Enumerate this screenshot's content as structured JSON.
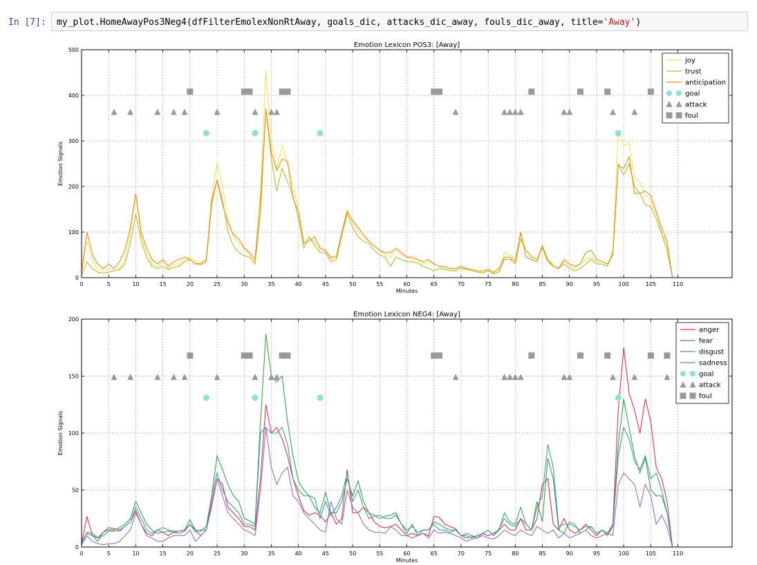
{
  "cell": {
    "prompt": "In [7]:",
    "code_before": "my_plot.HomeAwayPos3Neg4(dfFilterEmolexNonRtAway, goals_dic, attacks_dic_away, fouls_dic_away, title=",
    "code_string": "'Away'",
    "code_after": ")"
  },
  "chart_data": [
    {
      "type": "line",
      "title": "Emotion Lexicon POS3: [Away]",
      "xlabel": "Minutes",
      "ylabel": "Emotion Signals",
      "xlim": [
        0,
        120
      ],
      "ylim": [
        0,
        500
      ],
      "xticks": [
        0,
        5,
        10,
        15,
        20,
        25,
        30,
        35,
        40,
        45,
        50,
        55,
        60,
        65,
        70,
        75,
        80,
        85,
        90,
        95,
        100,
        105,
        110
      ],
      "yticks": [
        0,
        100,
        200,
        300,
        400,
        500
      ],
      "grid": true,
      "legend_position": "top-right",
      "legend": [
        "joy",
        "trust",
        "anticipation",
        "goal",
        "attack",
        "foul"
      ],
      "x": [
        0,
        1,
        2,
        3,
        4,
        5,
        6,
        7,
        8,
        9,
        10,
        11,
        12,
        13,
        14,
        15,
        16,
        17,
        18,
        19,
        20,
        21,
        22,
        23,
        24,
        25,
        26,
        27,
        28,
        29,
        30,
        31,
        32,
        33,
        34,
        35,
        36,
        37,
        38,
        39,
        40,
        41,
        42,
        43,
        44,
        45,
        46,
        47,
        48,
        49,
        50,
        51,
        52,
        53,
        54,
        55,
        56,
        57,
        58,
        59,
        60,
        61,
        62,
        63,
        64,
        65,
        66,
        67,
        68,
        69,
        70,
        71,
        72,
        73,
        74,
        75,
        76,
        77,
        78,
        79,
        80,
        81,
        82,
        83,
        84,
        85,
        86,
        87,
        88,
        89,
        90,
        91,
        92,
        93,
        94,
        95,
        96,
        97,
        98,
        99,
        100,
        101,
        102,
        103,
        104,
        105,
        106,
        107,
        108,
        109,
        110
      ],
      "series": [
        {
          "name": "joy",
          "color": "#f2e35e",
          "values": [
            10,
            80,
            35,
            20,
            15,
            20,
            15,
            20,
            40,
            100,
            180,
            90,
            55,
            30,
            25,
            35,
            20,
            28,
            30,
            40,
            45,
            35,
            30,
            40,
            180,
            250,
            200,
            130,
            90,
            75,
            65,
            50,
            35,
            190,
            455,
            300,
            240,
            290,
            250,
            200,
            150,
            80,
            85,
            80,
            60,
            60,
            40,
            50,
            100,
            150,
            120,
            100,
            90,
            80,
            70,
            60,
            50,
            45,
            60,
            50,
            45,
            40,
            40,
            30,
            35,
            30,
            25,
            20,
            18,
            20,
            22,
            20,
            18,
            15,
            12,
            15,
            10,
            15,
            55,
            50,
            40,
            95,
            60,
            50,
            40,
            70,
            40,
            30,
            20,
            35,
            25,
            20,
            30,
            40,
            45,
            35,
            30,
            25,
            60,
            320,
            290,
            295,
            220,
            210,
            180,
            170,
            140,
            100,
            70,
            0,
            0
          ]
        },
        {
          "name": "trust",
          "color": "#b5bd31",
          "values": [
            5,
            35,
            20,
            12,
            10,
            12,
            15,
            18,
            30,
            75,
            140,
            80,
            45,
            25,
            20,
            25,
            18,
            22,
            25,
            35,
            40,
            30,
            28,
            35,
            160,
            215,
            170,
            100,
            70,
            55,
            48,
            45,
            30,
            140,
            370,
            260,
            190,
            240,
            210,
            180,
            130,
            65,
            90,
            70,
            55,
            55,
            35,
            40,
            90,
            140,
            110,
            90,
            80,
            75,
            60,
            50,
            45,
            25,
            45,
            40,
            35,
            35,
            32,
            25,
            20,
            15,
            20,
            18,
            15,
            15,
            20,
            18,
            15,
            12,
            10,
            15,
            8,
            12,
            40,
            40,
            30,
            85,
            60,
            45,
            40,
            65,
            35,
            25,
            20,
            30,
            20,
            15,
            20,
            30,
            40,
            30,
            30,
            25,
            55,
            250,
            225,
            250,
            200,
            185,
            160,
            155,
            130,
            95,
            60,
            0,
            0
          ]
        },
        {
          "name": "anticipation",
          "color": "#f08c1e",
          "values": [
            15,
            100,
            50,
            30,
            20,
            30,
            20,
            35,
            60,
            110,
            185,
            100,
            65,
            40,
            30,
            40,
            25,
            35,
            40,
            45,
            40,
            30,
            32,
            40,
            170,
            215,
            160,
            120,
            95,
            85,
            65,
            55,
            40,
            170,
            370,
            275,
            235,
            260,
            255,
            175,
            145,
            75,
            80,
            90,
            65,
            60,
            45,
            45,
            100,
            145,
            125,
            110,
            95,
            80,
            70,
            60,
            55,
            55,
            65,
            55,
            45,
            45,
            40,
            35,
            40,
            30,
            25,
            25,
            20,
            20,
            25,
            20,
            18,
            15,
            15,
            18,
            12,
            20,
            45,
            45,
            35,
            100,
            45,
            40,
            35,
            70,
            40,
            25,
            20,
            40,
            30,
            25,
            30,
            55,
            60,
            40,
            35,
            30,
            50,
            245,
            240,
            265,
            185,
            185,
            190,
            180,
            145,
            110,
            80,
            0,
            0
          ]
        }
      ],
      "markers": {
        "goal": {
          "color": "#8fe0d8",
          "y": 317,
          "x": [
            23,
            32,
            44,
            99
          ]
        },
        "attack": {
          "color": "#999999",
          "y": 363,
          "x": [
            6,
            9,
            14,
            17,
            19,
            25,
            32,
            35,
            36,
            69,
            78,
            79,
            80,
            81,
            89,
            90,
            98,
            102
          ]
        },
        "foul": {
          "color": "#999999",
          "y": 408,
          "x": [
            20,
            30,
            31,
            37,
            38,
            65,
            66,
            83,
            92,
            97,
            105
          ]
        }
      }
    },
    {
      "type": "line",
      "title": "Emotion Lexicon NEG4: [Away]",
      "xlabel": "Minutes",
      "ylabel": "Emotion Signals",
      "xlim": [
        0,
        120
      ],
      "ylim": [
        0,
        200
      ],
      "xticks": [
        0,
        5,
        10,
        15,
        20,
        25,
        30,
        35,
        40,
        45,
        50,
        55,
        60,
        65,
        70,
        75,
        80,
        85,
        90,
        95,
        100,
        105,
        110
      ],
      "yticks": [
        0,
        50,
        100,
        150,
        200
      ],
      "grid": true,
      "legend_position": "top-right",
      "legend": [
        "anger",
        "fear",
        "disgust",
        "sadness",
        "goal",
        "attack",
        "foul"
      ],
      "x": [
        0,
        1,
        2,
        3,
        4,
        5,
        6,
        7,
        8,
        9,
        10,
        11,
        12,
        13,
        14,
        15,
        16,
        17,
        18,
        19,
        20,
        21,
        22,
        23,
        24,
        25,
        26,
        27,
        28,
        29,
        30,
        31,
        32,
        33,
        34,
        35,
        36,
        37,
        38,
        39,
        40,
        41,
        42,
        43,
        44,
        45,
        46,
        47,
        48,
        49,
        50,
        51,
        52,
        53,
        54,
        55,
        56,
        57,
        58,
        59,
        60,
        61,
        62,
        63,
        64,
        65,
        66,
        67,
        68,
        69,
        70,
        71,
        72,
        73,
        74,
        75,
        76,
        77,
        78,
        79,
        80,
        81,
        82,
        83,
        84,
        85,
        86,
        87,
        88,
        89,
        90,
        91,
        92,
        93,
        94,
        95,
        96,
        97,
        98,
        99,
        100,
        101,
        102,
        103,
        104,
        105,
        106,
        107,
        108,
        109,
        110
      ],
      "series": [
        {
          "name": "anger",
          "color": "#e0304a",
          "values": [
            3,
            27,
            10,
            8,
            13,
            17,
            16,
            15,
            18,
            22,
            32,
            20,
            12,
            10,
            15,
            13,
            10,
            13,
            12,
            14,
            20,
            15,
            10,
            15,
            40,
            60,
            55,
            35,
            30,
            25,
            18,
            18,
            15,
            60,
            125,
            100,
            105,
            95,
            80,
            60,
            45,
            32,
            28,
            30,
            28,
            22,
            30,
            20,
            25,
            68,
            30,
            30,
            35,
            30,
            22,
            18,
            17,
            18,
            20,
            15,
            10,
            12,
            10,
            12,
            10,
            27,
            26,
            20,
            18,
            16,
            10,
            8,
            9,
            10,
            12,
            10,
            12,
            15,
            20,
            15,
            15,
            25,
            15,
            15,
            25,
            55,
            60,
            20,
            15,
            25,
            15,
            12,
            15,
            20,
            15,
            10,
            15,
            12,
            20,
            120,
            175,
            135,
            120,
            100,
            130,
            110,
            70,
            60,
            40,
            0,
            0
          ]
        },
        {
          "name": "fear",
          "color": "#3aa04a",
          "values": [
            5,
            12,
            10,
            5,
            13,
            15,
            15,
            17,
            20,
            25,
            40,
            30,
            20,
            15,
            12,
            13,
            14,
            13,
            14,
            15,
            24,
            15,
            14,
            18,
            45,
            80,
            68,
            55,
            45,
            40,
            25,
            23,
            20,
            110,
            187,
            150,
            145,
            150,
            110,
            80,
            58,
            50,
            45,
            35,
            30,
            48,
            30,
            30,
            40,
            60,
            45,
            58,
            40,
            30,
            28,
            25,
            27,
            28,
            30,
            20,
            12,
            20,
            10,
            15,
            15,
            22,
            20,
            17,
            15,
            15,
            10,
            12,
            10,
            8,
            12,
            15,
            10,
            16,
            25,
            20,
            18,
            25,
            20,
            15,
            40,
            22,
            78,
            60,
            15,
            12,
            22,
            20,
            12,
            15,
            18,
            12,
            15,
            10,
            18,
            90,
            130,
            105,
            80,
            65,
            78,
            50,
            45,
            45,
            30,
            0,
            0
          ]
        },
        {
          "name": "disgust",
          "color": "#8e6fc6",
          "values": [
            2,
            10,
            5,
            3,
            2,
            3,
            3,
            5,
            10,
            15,
            30,
            20,
            10,
            8,
            5,
            5,
            8,
            10,
            10,
            10,
            15,
            5,
            10,
            15,
            35,
            60,
            45,
            30,
            25,
            20,
            15,
            13,
            10,
            50,
            105,
            70,
            55,
            65,
            70,
            45,
            40,
            30,
            25,
            20,
            15,
            13,
            40,
            25,
            20,
            50,
            35,
            30,
            20,
            15,
            13,
            13,
            12,
            18,
            15,
            10,
            10,
            8,
            10,
            12,
            8,
            15,
            12,
            13,
            12,
            10,
            8,
            5,
            7,
            8,
            10,
            8,
            7,
            10,
            15,
            12,
            10,
            15,
            12,
            10,
            18,
            15,
            12,
            15,
            8,
            12,
            8,
            10,
            12,
            15,
            10,
            8,
            10,
            12,
            10,
            55,
            65,
            60,
            55,
            35,
            55,
            45,
            20,
            28,
            18,
            0,
            0
          ]
        },
        {
          "name": "sadness",
          "color": "#3c9aa8",
          "values": [
            3,
            13,
            12,
            8,
            10,
            14,
            14,
            14,
            18,
            22,
            35,
            25,
            15,
            12,
            15,
            17,
            15,
            14,
            14,
            15,
            20,
            13,
            15,
            15,
            45,
            65,
            50,
            40,
            35,
            30,
            20,
            20,
            18,
            100,
            105,
            100,
            100,
            105,
            90,
            60,
            50,
            45,
            45,
            43,
            25,
            40,
            28,
            35,
            45,
            65,
            40,
            50,
            35,
            25,
            27,
            28,
            25,
            25,
            28,
            20,
            15,
            18,
            13,
            15,
            15,
            20,
            15,
            15,
            13,
            15,
            10,
            10,
            8,
            10,
            12,
            15,
            10,
            15,
            30,
            22,
            20,
            35,
            20,
            15,
            35,
            45,
            90,
            70,
            18,
            20,
            20,
            18,
            15,
            18,
            18,
            12,
            15,
            12,
            18,
            80,
            105,
            95,
            75,
            68,
            80,
            60,
            65,
            50,
            30,
            0,
            0
          ]
        }
      ],
      "markers": {
        "goal": {
          "color": "#8fe0d8",
          "y": 131,
          "x": [
            23,
            32,
            44,
            99
          ]
        },
        "attack": {
          "color": "#999999",
          "y": 149,
          "x": [
            6,
            9,
            14,
            17,
            19,
            25,
            32,
            35,
            36,
            69,
            78,
            79,
            80,
            81,
            89,
            90,
            98,
            102,
            108
          ]
        },
        "foul": {
          "color": "#999999",
          "y": 168,
          "x": [
            20,
            30,
            31,
            37,
            38,
            65,
            66,
            83,
            92,
            97,
            105,
            108
          ]
        }
      }
    }
  ]
}
